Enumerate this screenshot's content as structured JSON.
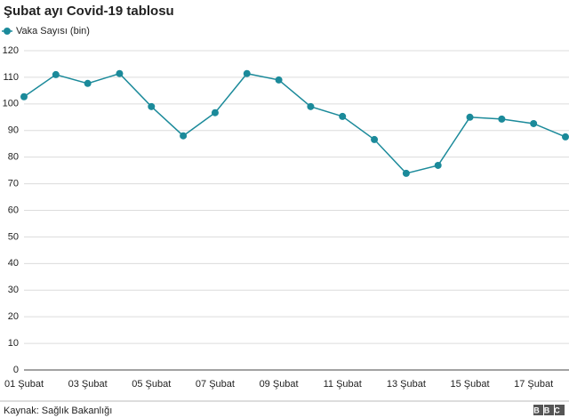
{
  "chart_data": {
    "type": "line",
    "title": "Şubat ayı Covid-19 tablosu",
    "categories": [
      "01 Şubat",
      null,
      "03 Şubat",
      null,
      "05 Şubat",
      null,
      "07 Şubat",
      null,
      "09 Şubat",
      null,
      "11 Şubat",
      null,
      "13 Şubat",
      null,
      "15 Şubat",
      null,
      "17 Şubat",
      null
    ],
    "series": [
      {
        "name": "Vaka Sayısı (bin)",
        "color": "#1b8a9a",
        "values": [
          102.7,
          111.0,
          107.7,
          111.4,
          99.0,
          88.0,
          96.7,
          111.4,
          109.0,
          99.0,
          95.3,
          86.6,
          73.9,
          76.9,
          95.0,
          94.3,
          92.6,
          87.6
        ]
      }
    ],
    "ylim": [
      0,
      120
    ],
    "yticks": [
      0,
      10,
      20,
      30,
      40,
      50,
      60,
      70,
      80,
      90,
      100,
      110,
      120
    ],
    "grid": true,
    "source": "Kaynak: Sağlık Bakanlığı",
    "logo": "BBC"
  }
}
